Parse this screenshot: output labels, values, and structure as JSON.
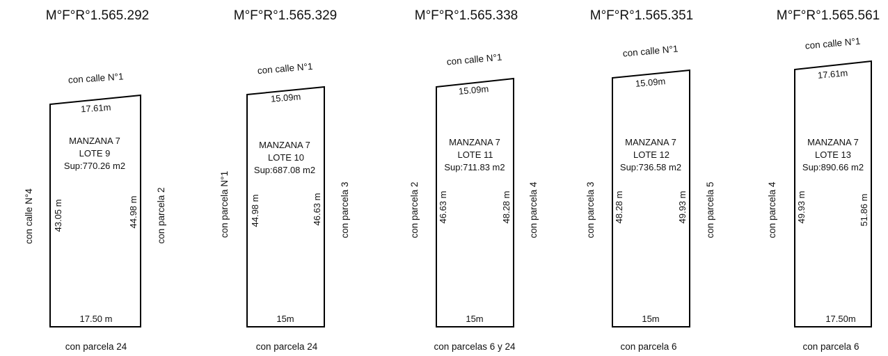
{
  "lots": [
    {
      "title": "M°F°R°1.565.292",
      "front_street": "con calle N°1",
      "front_width": "17.61m",
      "manzana": "MANZANA 7",
      "lote": "LOTE  9",
      "sup": "Sup:770.26 m2",
      "left_neighbor": "con calle N°4",
      "right_neighbor": "con parcela 2",
      "left_length": "43.05 m",
      "right_length": "44.98 m",
      "back_width": "17.50 m",
      "back_neighbor": "con parcela 24"
    },
    {
      "title": "M°F°R°1.565.329",
      "front_street": "con calle N°1",
      "front_width": "15.09m",
      "manzana": "MANZANA 7",
      "lote": "LOTE  10",
      "sup": "Sup:687.08 m2",
      "left_neighbor": "con parcela N°1",
      "right_neighbor": "con parcela 3",
      "left_length": "44.98 m",
      "right_length": "46.63 m",
      "back_width": "15m",
      "back_neighbor": "con parcela 24"
    },
    {
      "title": "M°F°R°1.565.338",
      "front_street": "con calle N°1",
      "front_width": "15.09m",
      "manzana": "MANZANA 7",
      "lote": "LOTE  11",
      "sup": "Sup:711.83 m2",
      "left_neighbor": "con parcela 2",
      "right_neighbor": "con parcela 4",
      "left_length": "46.63 m",
      "right_length": "48.28 m",
      "back_width": "15m",
      "back_neighbor": "con parcelas 6 y 24"
    },
    {
      "title": "M°F°R°1.565.351",
      "front_street": "con calle N°1",
      "front_width": "15.09m",
      "manzana": "MANZANA 7",
      "lote": "LOTE  12",
      "sup": "Sup:736.58 m2",
      "left_neighbor": "con parcela 3",
      "right_neighbor": "con parcela 5",
      "left_length": "48.28 m",
      "right_length": "49.93 m",
      "back_width": "15m",
      "back_neighbor": "con parcela 6"
    },
    {
      "title": "M°F°R°1.565.561",
      "front_street": "con calle N°1",
      "front_width": "17.61m",
      "manzana": "MANZANA 7",
      "lote": "LOTE  13",
      "sup": "Sup:890.66 m2",
      "left_neighbor": "con parcela 4",
      "right_neighbor": "",
      "left_length": "49.93 m",
      "right_length": "51.86 m",
      "back_width": "17.50m",
      "back_neighbor": "con parcela 6"
    }
  ]
}
